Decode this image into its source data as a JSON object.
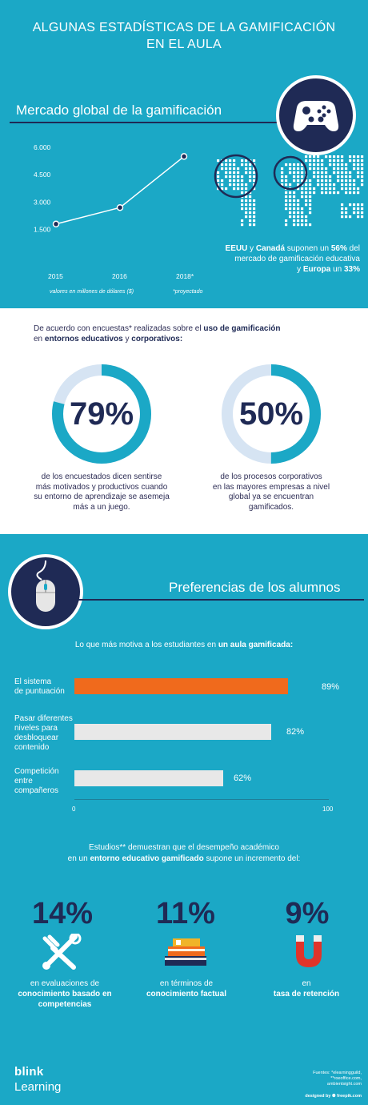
{
  "title_line1": "ALGUNAS ESTADÍSTICAS DE LA GAMIFICACIÓN",
  "title_line2": "EN EL AULA",
  "market": {
    "heading": "Mercado global de la gamificación",
    "y_ticks": [
      "6.000",
      "4.500",
      "3.000",
      "1.500"
    ],
    "x_ticks": [
      "2015",
      "2016",
      "2018*"
    ],
    "unit_note": "valores en millones de dólares ($)",
    "projected_note": "*proyectado",
    "map_text": {
      "p1": "EEUU",
      "p2": " y ",
      "p3": "Canadá",
      "p4": " suponen un ",
      "p5": "56%",
      "p6": " del mercado de gamificación educativa",
      "p7": "y ",
      "p8": "Europa",
      "p9": " un ",
      "p10": "33%"
    }
  },
  "chart_data": [
    {
      "type": "line",
      "x": [
        "2015",
        "2016",
        "2018*"
      ],
      "values": [
        1800,
        2700,
        5500
      ],
      "ylim": [
        1000,
        6000
      ],
      "y_ticks": [
        1500,
        3000,
        4500,
        6000
      ],
      "xlabel": "",
      "ylabel": "valores en millones de dólares ($)",
      "grid": false
    },
    {
      "type": "bar",
      "orientation": "horizontal",
      "categories": [
        "El sistema de puntuación",
        "Pasar diferentes niveles para desbloquear contenido",
        "Competición entre compañeros"
      ],
      "values": [
        89,
        82,
        62
      ],
      "xlim": [
        0,
        100
      ],
      "x_ticks": [
        "0",
        "100"
      ],
      "title": "Lo que más motiva a los estudiantes en un aula gamificada:"
    }
  ],
  "survey": {
    "intro_a": "De acuerdo con encuestas* realizadas sobre el ",
    "intro_b": "uso de gamificación",
    "intro_c": "en ",
    "intro_d": "entornos educativos",
    "intro_e": " y ",
    "intro_f": "corporativos:",
    "ring1": {
      "value": 79,
      "label": "79%",
      "caption": [
        "de los encuestados dicen sentirse",
        "más motivados y productivos cuando",
        "su entorno de aprendizaje se asemeja",
        "más a un juego."
      ]
    },
    "ring2": {
      "value": 50,
      "label": "50%",
      "caption": [
        "de los procesos corporativos",
        "en las mayores empresas a nivel",
        "global ya se encuentran",
        "gamificados."
      ]
    }
  },
  "prefs": {
    "heading": "Preferencias de los alumnos",
    "intro_a": "Lo que más motiva a los estudiantes en ",
    "intro_b": "un aula gamificada:",
    "bars": [
      {
        "label": [
          "El sistema",
          "de puntuación"
        ],
        "value": 89,
        "pct": "89%",
        "color": "#f06a1c"
      },
      {
        "label": [
          "Pasar diferentes",
          "niveles para",
          "desbloquear",
          "contenido"
        ],
        "value": 82,
        "pct": "82%",
        "color": "#e8e8e8"
      },
      {
        "label": [
          "Competición",
          "entre",
          "compañeros"
        ],
        "value": 62,
        "pct": "62%",
        "color": "#e8e8e8"
      }
    ],
    "axis_min": "0",
    "axis_max": "100"
  },
  "studies": {
    "intro_a": "Estudios** demuestran que el desempeño académico",
    "intro_b": "en un ",
    "intro_c": "entorno educativo gamificado",
    "intro_d": " supone un incremento del:",
    "items": [
      {
        "pct": "14%",
        "icon": "tools-icon",
        "line1": "en evaluaciones de",
        "line2": "conocimiento basado en",
        "line3": "competencias"
      },
      {
        "pct": "11%",
        "icon": "books-icon",
        "line1": "en términos de",
        "line2": "conocimiento factual",
        "line3": ""
      },
      {
        "pct": "9%",
        "icon": "magnet-icon",
        "line1": "en",
        "line2": "tasa de retención",
        "line3": ""
      }
    ]
  },
  "footer": {
    "logo_line1": "blink",
    "logo_line2": "Learning",
    "sources": [
      "Fuentes: *elearningguild,",
      "**roeoffice.com,",
      "ambientsight.com"
    ],
    "credit": "designed by ❁ freepik.com"
  },
  "colors": {
    "navy": "#1f2a55",
    "teal": "#1ba8c6",
    "orange": "#f06a1c",
    "ring_light": "#d6e4f3"
  }
}
